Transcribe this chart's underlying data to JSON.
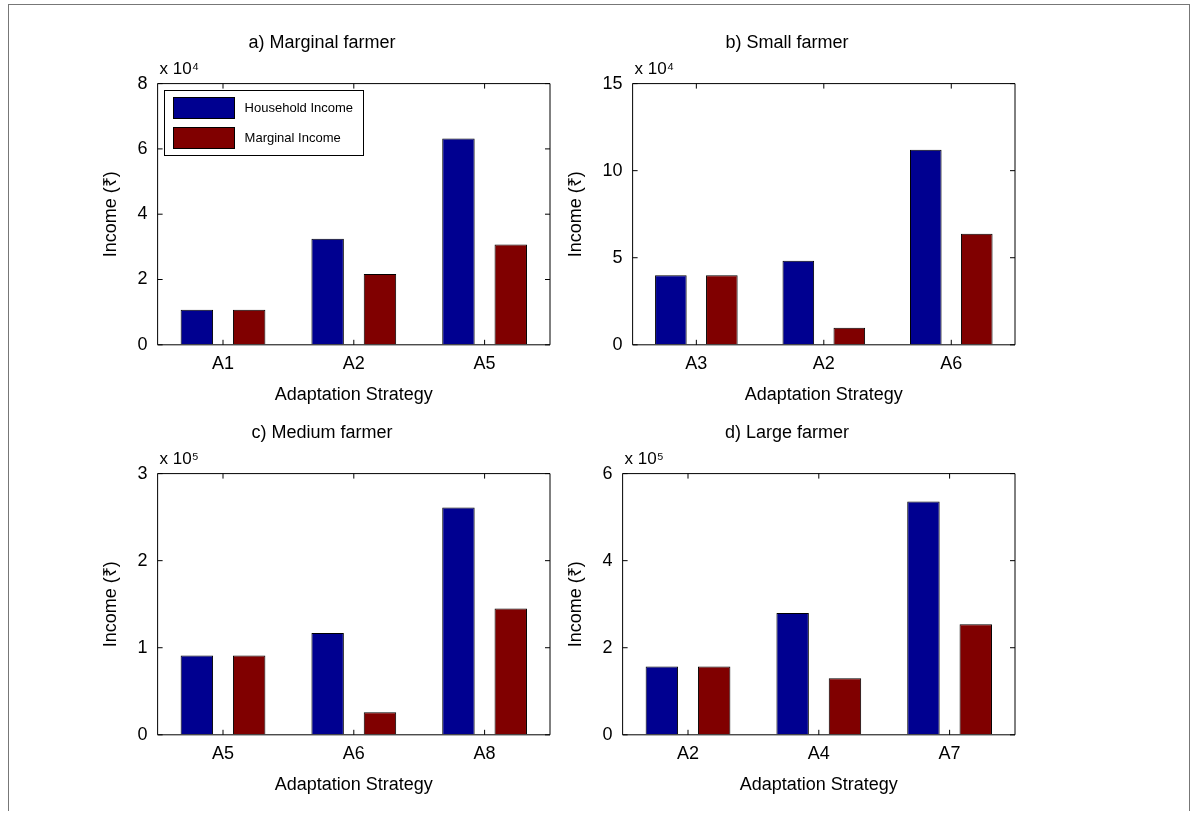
{
  "chart_data": [
    {
      "type": "bar",
      "title": "a) Marginal farmer",
      "xlabel": "Adaptation Strategy",
      "ylabel": "Income (₹)",
      "annotations": [
        "x 10⁴"
      ],
      "categories": [
        "A1",
        "A2",
        "A5"
      ],
      "series": [
        {
          "name": "Household Income",
          "color": "#000090",
          "values": [
            1.07,
            3.25,
            6.32
          ]
        },
        {
          "name": "Marginal Income",
          "color": "#800000",
          "values": [
            1.07,
            2.17,
            3.07
          ]
        }
      ],
      "ylim": [
        0,
        8
      ],
      "yticks": [
        0,
        2,
        4,
        6,
        8
      ],
      "legend": "top left"
    },
    {
      "type": "bar",
      "title": "b) Small farmer",
      "xlabel": "Adaptation Strategy",
      "ylabel": "Income (₹)",
      "annotations": [
        "x 10⁴"
      ],
      "categories": [
        "A3",
        "A2",
        "A6"
      ],
      "series": [
        {
          "color": "#000090",
          "values": [
            4.0,
            4.83,
            11.2
          ]
        },
        {
          "color": "#800000",
          "values": [
            4.0,
            0.98,
            6.38
          ]
        }
      ],
      "ylim": [
        0,
        15
      ],
      "yticks": [
        0,
        5,
        10,
        15
      ]
    },
    {
      "type": "bar",
      "title": "c) Medium farmer",
      "xlabel": "Adaptation Strategy",
      "ylabel": "Income (₹)",
      "annotations": [
        "x 10⁵"
      ],
      "categories": [
        "A5",
        "A6",
        "A8"
      ],
      "series": [
        {
          "color": "#000090",
          "values": [
            0.91,
            1.17,
            2.61
          ]
        },
        {
          "color": "#800000",
          "values": [
            0.91,
            0.26,
            1.45
          ]
        }
      ],
      "ylim": [
        0,
        3
      ],
      "yticks": [
        0,
        1,
        2,
        3
      ]
    },
    {
      "type": "bar",
      "title": "d) Large farmer",
      "xlabel": "Adaptation Strategy",
      "ylabel": "Income (₹)",
      "annotations": [
        "x 10⁵"
      ],
      "categories": [
        "A2",
        "A4",
        "A7"
      ],
      "series": [
        {
          "color": "#000090",
          "values": [
            1.57,
            2.8,
            5.36
          ]
        },
        {
          "color": "#800000",
          "values": [
            1.57,
            1.3,
            2.54
          ]
        }
      ],
      "ylim": [
        0,
        6
      ],
      "yticks": [
        0,
        2,
        4,
        6
      ]
    }
  ]
}
